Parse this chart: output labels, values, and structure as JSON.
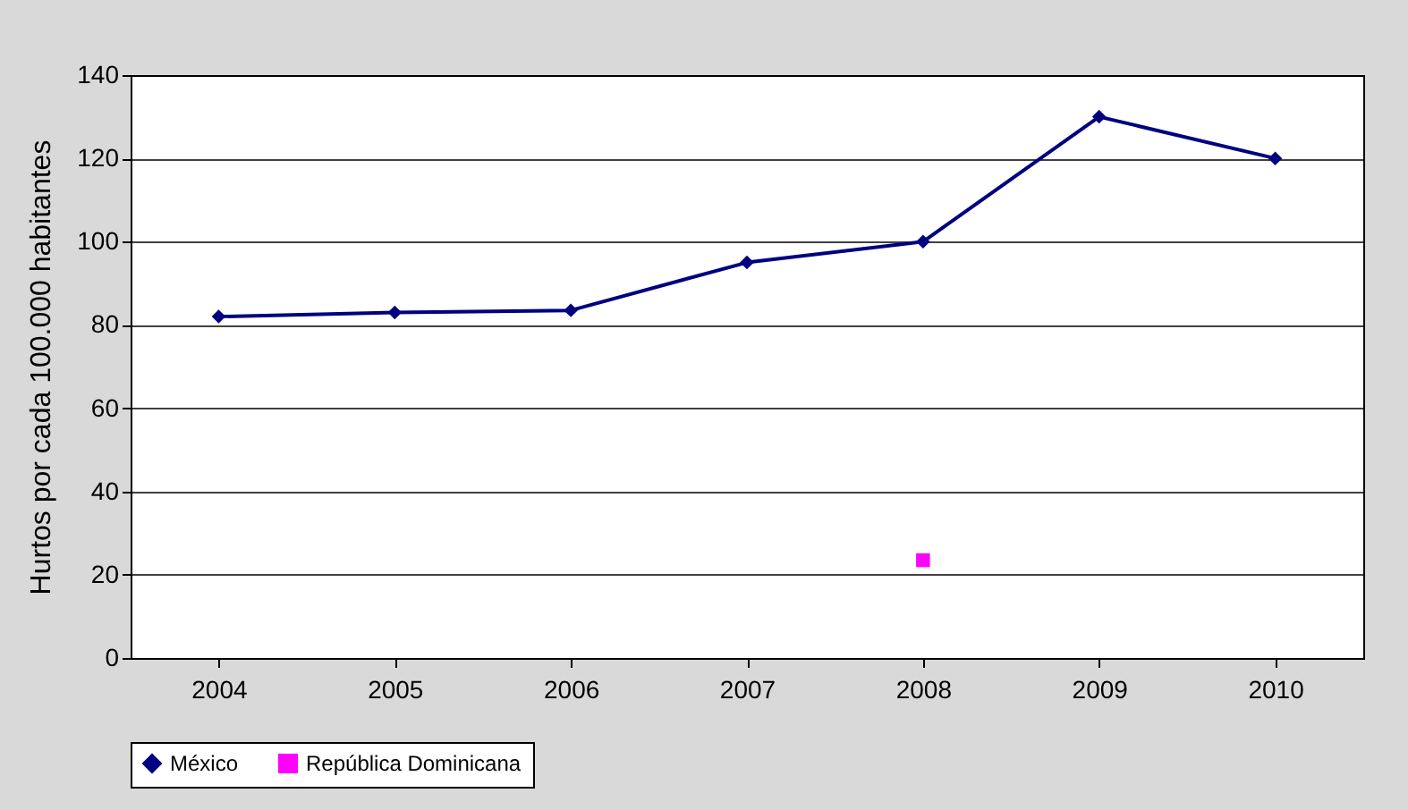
{
  "chart_data": {
    "type": "line",
    "ylabel": "Hurtos por cada 100.000 habitantes",
    "categories": [
      "2004",
      "2005",
      "2006",
      "2007",
      "2008",
      "2009",
      "2010"
    ],
    "series": [
      {
        "name": "México",
        "color": "#000080",
        "marker": "diamond",
        "values": [
          82,
          83,
          83.5,
          95,
          100,
          130,
          120
        ]
      },
      {
        "name": "República Dominicana",
        "color": "#ff00ff",
        "marker": "square",
        "values": [
          null,
          null,
          null,
          null,
          23.5,
          null,
          null
        ]
      }
    ],
    "ylim": [
      0,
      140
    ],
    "yticks": [
      0,
      20,
      40,
      60,
      80,
      100,
      120,
      140
    ],
    "grid": "y",
    "legend": "bottom"
  }
}
